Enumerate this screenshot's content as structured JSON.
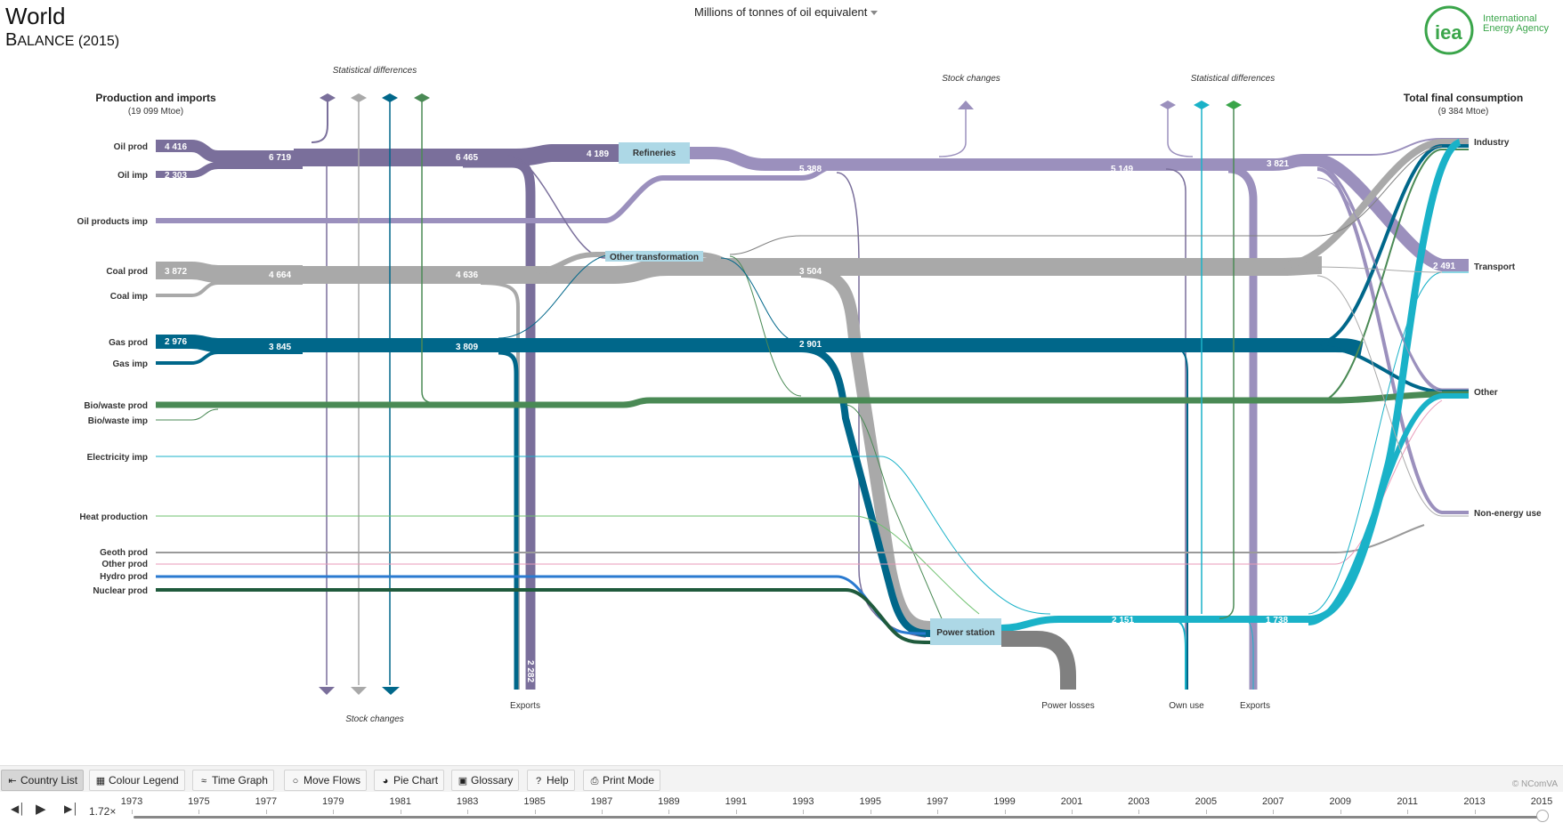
{
  "header": {
    "title": "World",
    "subtitle_cap": "B",
    "subtitle_rest": "ALANCE (2015)"
  },
  "unit_selector": {
    "value": "Millions of tonnes of oil equivalent"
  },
  "logo": {
    "line1": "International",
    "line2": "Energy Agency",
    "mark": "iea"
  },
  "colors": {
    "oil": "#7a6f9b",
    "oil_light": "#9b90bd",
    "oil_products": "#a297c4",
    "coal": "#a9a9a9",
    "gas": "#00678a",
    "bio": "#4a8a55",
    "electricity": "#1ab2c8",
    "heat": "#6fc16f",
    "geoth": "#9a9a9a",
    "other_prod": "#e89ab8",
    "hydro": "#2a7ad0",
    "nuclear": "#1f5a3c",
    "box": "#add8e6",
    "losses": "#808080"
  },
  "diagram": {
    "production_title": "Production and imports",
    "production_total": "(19 099 Mtoe)",
    "consumption_title": "Total final consumption",
    "consumption_total": "(9 384 Mtoe)",
    "sources": [
      {
        "name": "Oil prod"
      },
      {
        "name": "Oil imp"
      },
      {
        "name": "Oil products imp"
      },
      {
        "name": "Coal prod"
      },
      {
        "name": "Coal imp"
      },
      {
        "name": "Gas prod"
      },
      {
        "name": "Gas imp"
      },
      {
        "name": "Bio/waste prod"
      },
      {
        "name": "Bio/waste imp"
      },
      {
        "name": "Electricity imp"
      },
      {
        "name": "Heat production"
      },
      {
        "name": "Geoth prod"
      },
      {
        "name": "Other prod"
      },
      {
        "name": "Hydro prod"
      },
      {
        "name": "Nuclear prod"
      }
    ],
    "sinks": [
      {
        "name": "Industry"
      },
      {
        "name": "Transport"
      },
      {
        "name": "Other"
      },
      {
        "name": "Non-energy use"
      }
    ],
    "nodes": {
      "refineries": "Refineries",
      "other_transformation": "Other transformation",
      "power_station": "Power station"
    },
    "annotations": {
      "stat_diff_1": "Statistical differences",
      "stock_changes_bottom": "Stock changes",
      "stock_changes_top": "Stock  changes",
      "stat_diff_2": "Statistical differences",
      "exports_1": "Exports",
      "power_losses": "Power losses",
      "own_use": "Own use",
      "exports_2": "Exports"
    },
    "values": {
      "oil_prod": "4 416",
      "oil_imp": "2 303",
      "oil_total": "6 719",
      "oil_after": "6 465",
      "oil_to_refinery": "4 189",
      "oil_products_1": "5 388",
      "oil_products_2": "5 149",
      "oil_products_3": "3 821",
      "coal_prod": "3 872",
      "coal_total": "4 664",
      "coal_after": "4 636",
      "coal_to_ot": "3 504",
      "gas_prod": "2 976",
      "gas_total": "3 845",
      "gas_after": "3 809",
      "gas_to_ps": "2 901",
      "oil_exports": "2 282",
      "electricity_1": "2 151",
      "electricity_2": "1 738",
      "transport": "2 491"
    }
  },
  "toolbar": {
    "country_list": "Country List",
    "colour_legend": "Colour Legend",
    "time_graph": "Time Graph",
    "move_flows": "Move Flows",
    "pie_chart": "Pie Chart",
    "glossary": "Glossary",
    "help": "Help",
    "print_mode": "Print Mode"
  },
  "credit": "© NComVA",
  "timeline": {
    "speed": "1.72×",
    "years": [
      "1973",
      "1975",
      "1977",
      "1979",
      "1981",
      "1983",
      "1985",
      "1987",
      "1989",
      "1991",
      "1993",
      "1995",
      "1997",
      "1999",
      "2001",
      "2003",
      "2005",
      "2007",
      "2009",
      "2011",
      "2013",
      "2015"
    ],
    "current_year": "2015"
  }
}
